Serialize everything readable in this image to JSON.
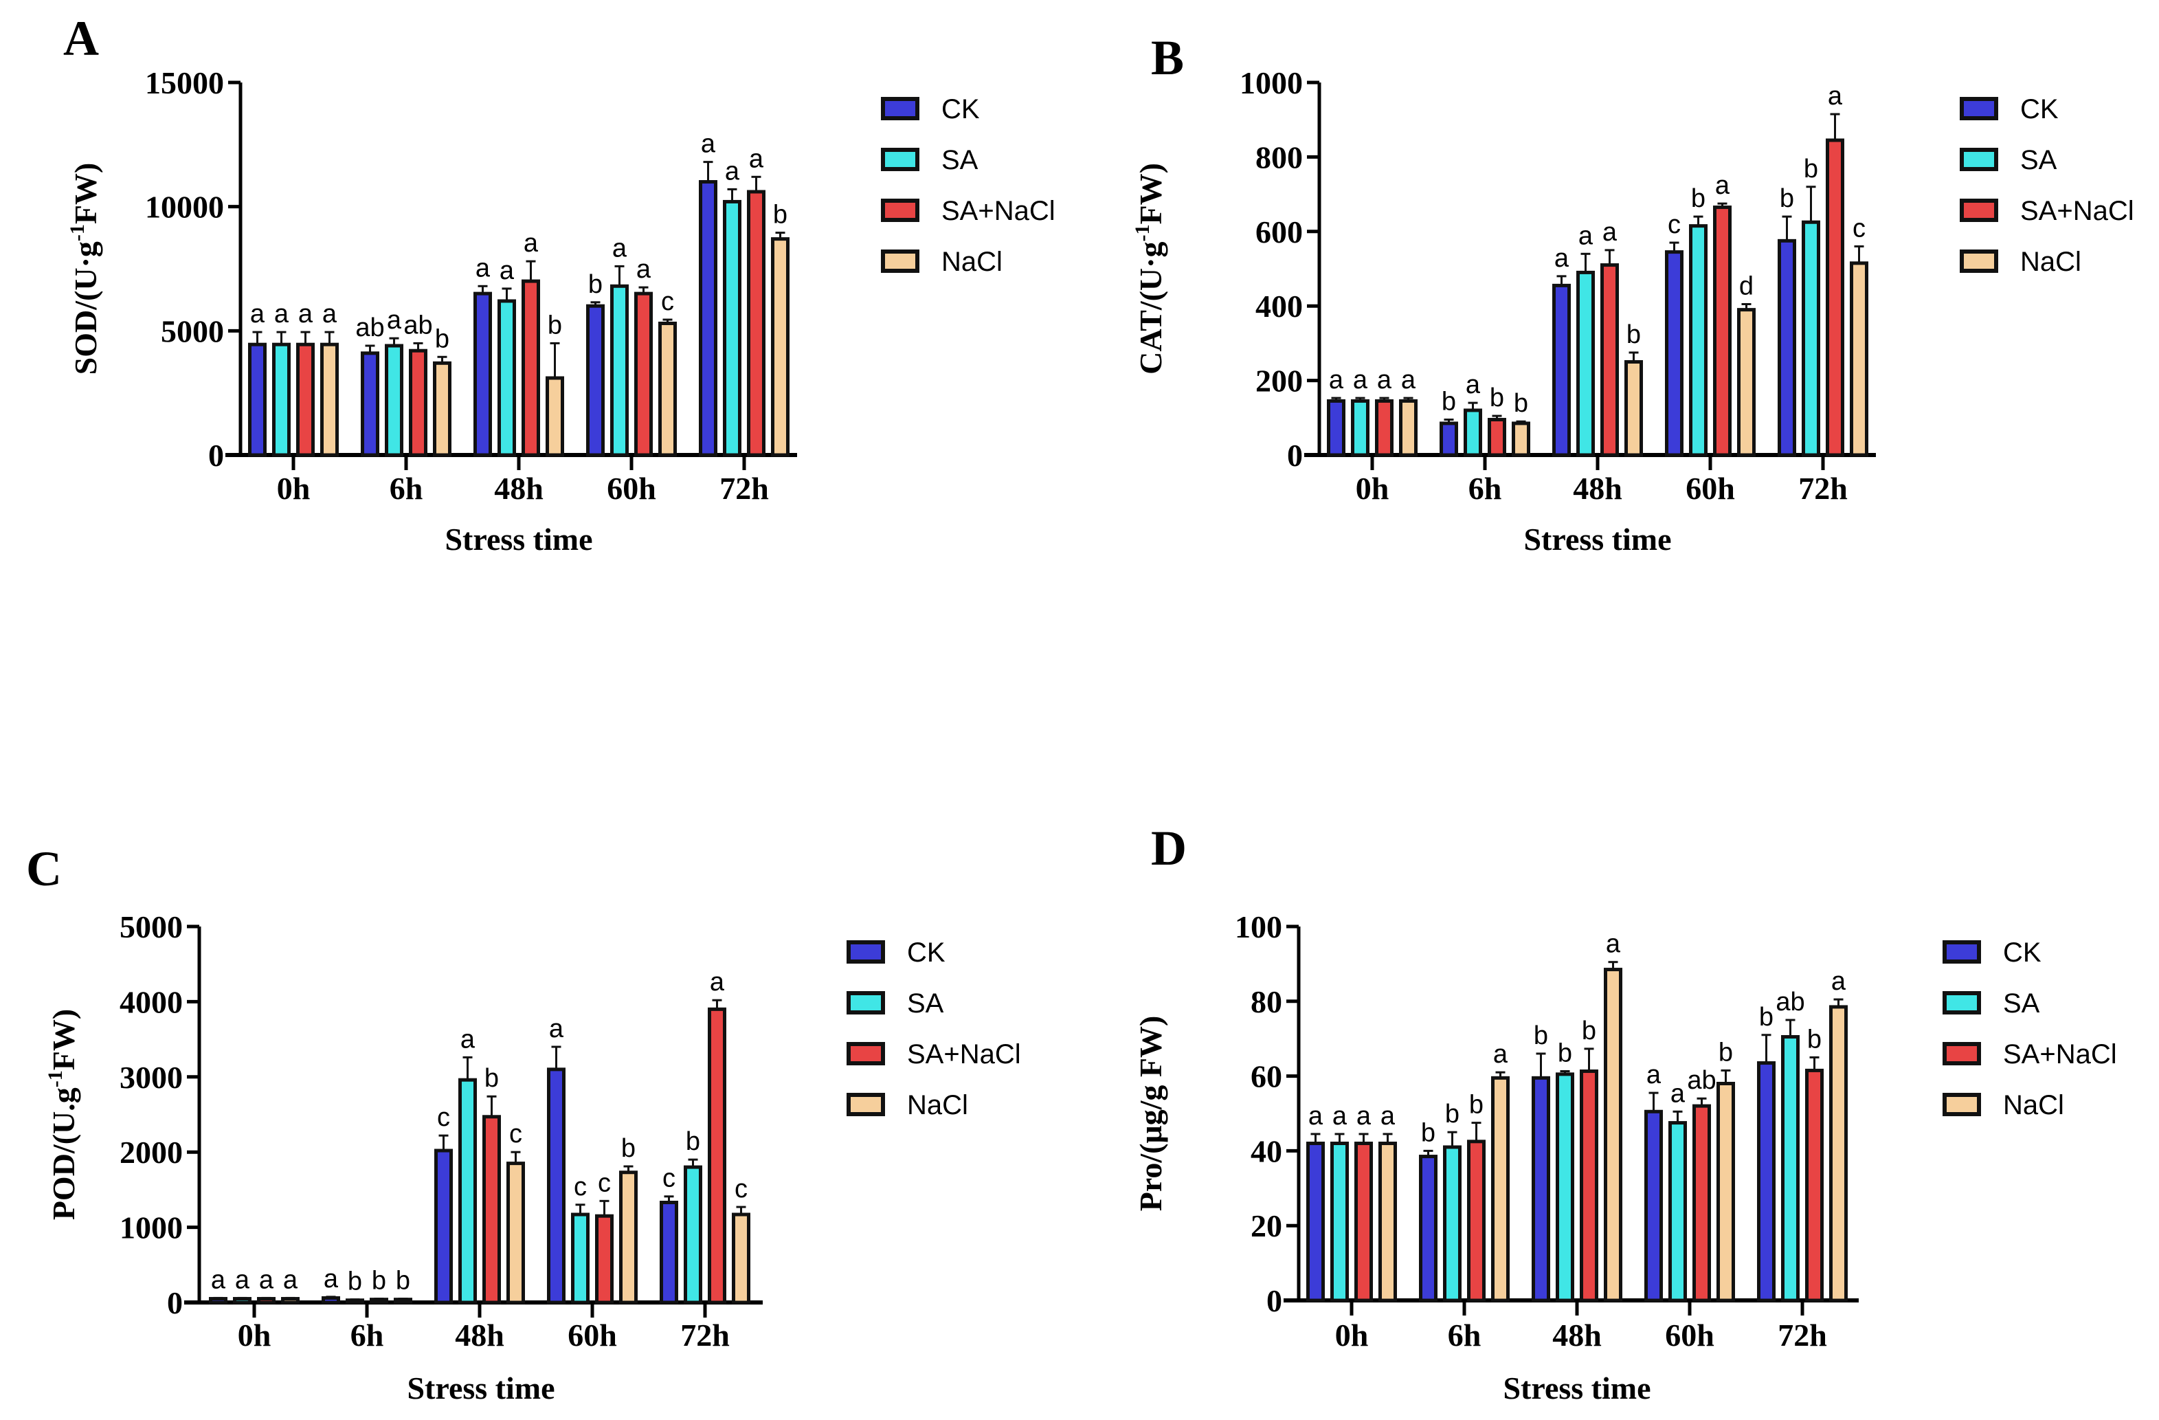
{
  "legend_colors": {
    "CK": "#3c3cd8",
    "SA": "#40e6e6",
    "SA+NaCl": "#e84444",
    "NaCl": "#f6cf9c"
  },
  "chart_data": [
    {
      "type": "bar",
      "panel": "A",
      "ylabel": {
        "prefix": "SOD/(U·g",
        "sup": "-1",
        "suffix": "FW)"
      },
      "xlabel": "Stress time",
      "ylim": [
        0,
        15000
      ],
      "yticks": [
        0,
        5000,
        10000,
        15000
      ],
      "categories": [
        "0h",
        "6h",
        "48h",
        "60h",
        "72h"
      ],
      "series": [
        {
          "name": "CK",
          "values": [
            4450,
            4100,
            6500,
            6000,
            11000
          ],
          "errors": [
            500,
            300,
            300,
            150,
            800
          ],
          "letters": [
            "a",
            "ab",
            "a",
            "b",
            "a"
          ]
        },
        {
          "name": "SA",
          "values": [
            4450,
            4400,
            6200,
            6800,
            10200
          ],
          "errors": [
            500,
            300,
            500,
            800,
            500
          ],
          "letters": [
            "a",
            "a",
            "a",
            "a",
            "a"
          ]
        },
        {
          "name": "SA+NaCl",
          "values": [
            4450,
            4200,
            7000,
            6500,
            10600
          ],
          "errors": [
            500,
            300,
            800,
            250,
            600
          ],
          "letters": [
            "a",
            "ab",
            "a",
            "a",
            "a"
          ]
        },
        {
          "name": "NaCl",
          "values": [
            4450,
            3700,
            3100,
            5300,
            8700
          ],
          "errors": [
            500,
            250,
            1400,
            150,
            250
          ],
          "letters": [
            "a",
            "b",
            "b",
            "c",
            "b"
          ]
        }
      ]
    },
    {
      "type": "bar",
      "panel": "B",
      "ylabel": {
        "prefix": "CAT/(U·g",
        "sup": "-1",
        "suffix": "FW)"
      },
      "xlabel": "Stress time",
      "ylim": [
        0,
        1000
      ],
      "yticks": [
        0,
        200,
        400,
        600,
        800,
        1000
      ],
      "categories": [
        "0h",
        "6h",
        "48h",
        "60h",
        "72h"
      ],
      "series": [
        {
          "name": "CK",
          "values": [
            145,
            85,
            455,
            545,
            575
          ],
          "errors": [
            8,
            10,
            25,
            25,
            65
          ],
          "letters": [
            "a",
            "b",
            "a",
            "c",
            "b"
          ]
        },
        {
          "name": "SA",
          "values": [
            145,
            120,
            490,
            615,
            625
          ],
          "errors": [
            8,
            20,
            50,
            25,
            95
          ],
          "letters": [
            "a",
            "a",
            "a",
            "b",
            "b"
          ]
        },
        {
          "name": "SA+NaCl",
          "values": [
            145,
            95,
            510,
            665,
            845
          ],
          "errors": [
            8,
            10,
            40,
            10,
            70
          ],
          "letters": [
            "a",
            "b",
            "a",
            "a",
            "a"
          ]
        },
        {
          "name": "NaCl",
          "values": [
            145,
            85,
            250,
            390,
            515
          ],
          "errors": [
            8,
            5,
            25,
            15,
            45
          ],
          "letters": [
            "a",
            "b",
            "b",
            "d",
            "c"
          ]
        }
      ]
    },
    {
      "type": "bar",
      "panel": "C",
      "ylabel": {
        "prefix": "POD/(U.g",
        "sup": "-1",
        "suffix": "FW)"
      },
      "xlabel": "Stress time",
      "ylim": [
        0,
        5000
      ],
      "yticks": [
        0,
        1000,
        2000,
        3000,
        4000,
        5000
      ],
      "categories": [
        "0h",
        "6h",
        "48h",
        "60h",
        "72h"
      ],
      "series": [
        {
          "name": "CK",
          "values": [
            50,
            60,
            2020,
            3100,
            1330
          ],
          "errors": [
            10,
            15,
            200,
            300,
            80
          ],
          "letters": [
            "a",
            "a",
            "c",
            "a",
            "c"
          ]
        },
        {
          "name": "SA",
          "values": [
            50,
            30,
            2960,
            1170,
            1800
          ],
          "errors": [
            10,
            10,
            300,
            130,
            100
          ],
          "letters": [
            "a",
            "b",
            "a",
            "c",
            "b"
          ]
        },
        {
          "name": "SA+NaCl",
          "values": [
            50,
            40,
            2470,
            1150,
            3900
          ],
          "errors": [
            10,
            10,
            270,
            200,
            120
          ],
          "letters": [
            "a",
            "b",
            "b",
            "c",
            "a"
          ]
        },
        {
          "name": "NaCl",
          "values": [
            50,
            40,
            1850,
            1730,
            1170
          ],
          "errors": [
            10,
            10,
            150,
            80,
            100
          ],
          "letters": [
            "a",
            "b",
            "c",
            "b",
            "c"
          ]
        }
      ]
    },
    {
      "type": "bar",
      "panel": "D",
      "ylabel": {
        "prefix": "Pro/(μg/g FW)",
        "sup": "",
        "suffix": ""
      },
      "xlabel": "Stress time",
      "ylim": [
        0,
        100
      ],
      "yticks": [
        0,
        20,
        40,
        60,
        80,
        100
      ],
      "categories": [
        "0h",
        "6h",
        "48h",
        "60h",
        "72h"
      ],
      "series": [
        {
          "name": "CK",
          "values": [
            42,
            38.5,
            59.5,
            50.5,
            63.5
          ],
          "errors": [
            2.5,
            1.5,
            6.5,
            5,
            7.5
          ],
          "letters": [
            "a",
            "b",
            "b",
            "a",
            "b"
          ]
        },
        {
          "name": "SA",
          "values": [
            42,
            41,
            60.5,
            47.5,
            70.5
          ],
          "errors": [
            2.5,
            4,
            0.8,
            3,
            4.5
          ],
          "letters": [
            "a",
            "b",
            "b",
            "a",
            "ab"
          ]
        },
        {
          "name": "SA+NaCl",
          "values": [
            42,
            42.5,
            61.3,
            52,
            61.5
          ],
          "errors": [
            2.5,
            5,
            6,
            2,
            3.5
          ],
          "letters": [
            "a",
            "b",
            "b",
            "ab",
            "b"
          ]
        },
        {
          "name": "NaCl",
          "values": [
            42,
            59.5,
            88.5,
            58,
            78.5
          ],
          "errors": [
            2.5,
            1.5,
            2,
            3.5,
            2
          ],
          "letters": [
            "a",
            "a",
            "a",
            "b",
            "a"
          ]
        }
      ]
    }
  ]
}
